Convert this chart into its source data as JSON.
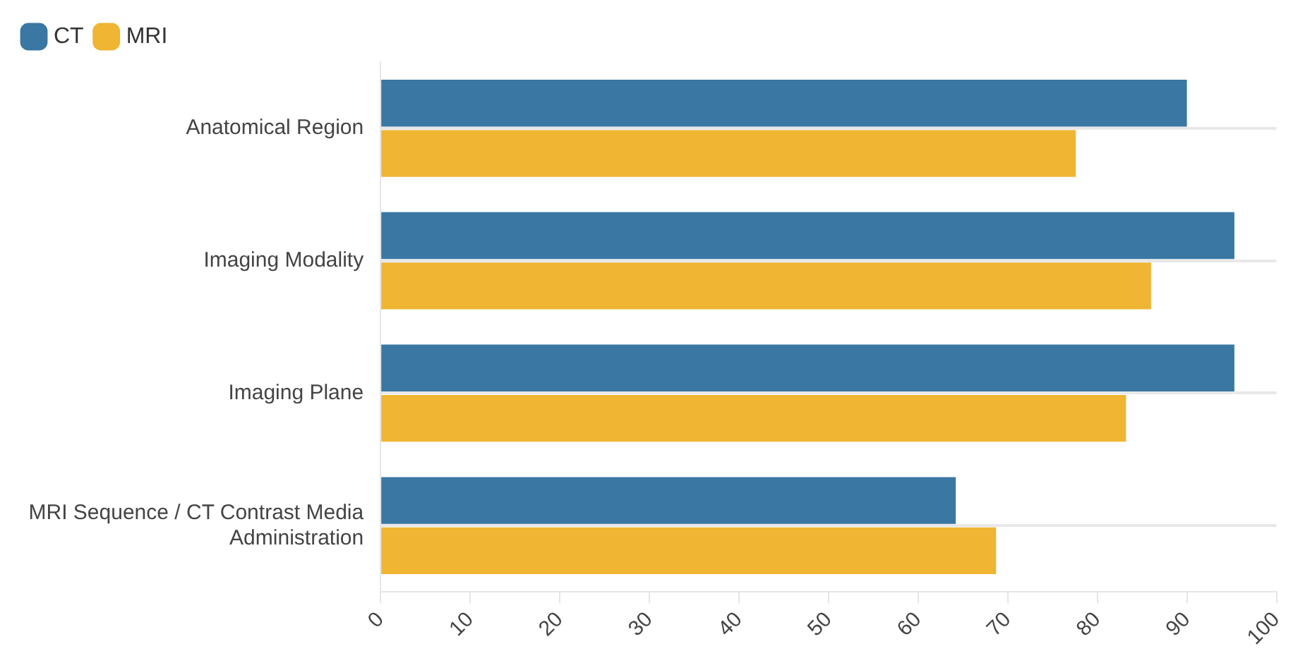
{
  "chart_data": {
    "type": "bar",
    "orientation": "horizontal",
    "categories": [
      "Anatomical Region",
      "Imaging Modality",
      "Imaging Plane",
      "MRI Sequence / CT Contrast Media Administration"
    ],
    "series": [
      {
        "name": "CT",
        "color": "#3a77a3",
        "values": [
          90.0,
          95.3,
          95.3,
          64.2
        ]
      },
      {
        "name": "MRI",
        "color": "#efb533",
        "values": [
          77.6,
          86.0,
          83.2,
          68.7
        ]
      }
    ],
    "xlim": [
      0,
      100
    ],
    "xticks": [
      0,
      10,
      20,
      30,
      40,
      50,
      60,
      70,
      80,
      90,
      100
    ],
    "grid": "y",
    "legend": "top left"
  }
}
